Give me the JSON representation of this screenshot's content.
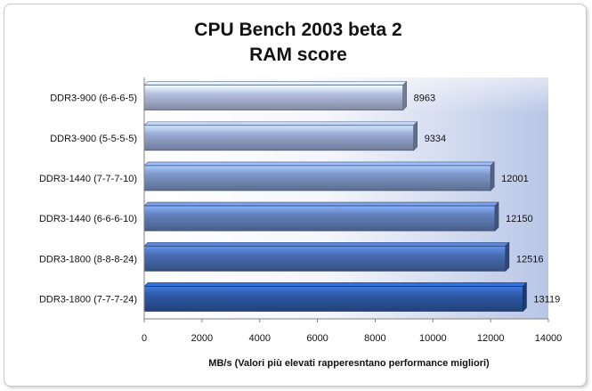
{
  "chart_data": {
    "type": "bar",
    "orientation": "horizontal",
    "title_lines": [
      "CPU Bench 2003 beta 2",
      "RAM score"
    ],
    "categories": [
      "DDR3-900 (6-6-6-5)",
      "DDR3-900 (5-5-5-5)",
      "DDR3-1440 (7-7-7-10)",
      "DDR3-1440 (6-6-6-10)",
      "DDR3-1800 (8-8-8-24)",
      "DDR3-1800 (7-7-7-24)"
    ],
    "values": [
      8963,
      9334,
      12001,
      12150,
      12516,
      13119
    ],
    "value_labels": [
      "8963",
      "9334",
      "12001",
      "12150",
      "12516",
      "13119"
    ],
    "xlabel": "MB/s (Valori più  elevati rapperesntano performance migliori)",
    "xlim": [
      0,
      14000
    ],
    "xticks": [
      0,
      2000,
      4000,
      6000,
      8000,
      10000,
      12000,
      14000
    ],
    "xtick_labels": [
      "0",
      "2000",
      "4000",
      "6000",
      "8000",
      "10000",
      "12000",
      "14000"
    ],
    "grid": false,
    "legend": "none",
    "colors": {
      "bar_light": "#b4bfdf",
      "bar_dark": "#2f5aa8",
      "plot_bg_start": "#ffffff",
      "plot_bg_end": "#b8c6e6"
    }
  }
}
